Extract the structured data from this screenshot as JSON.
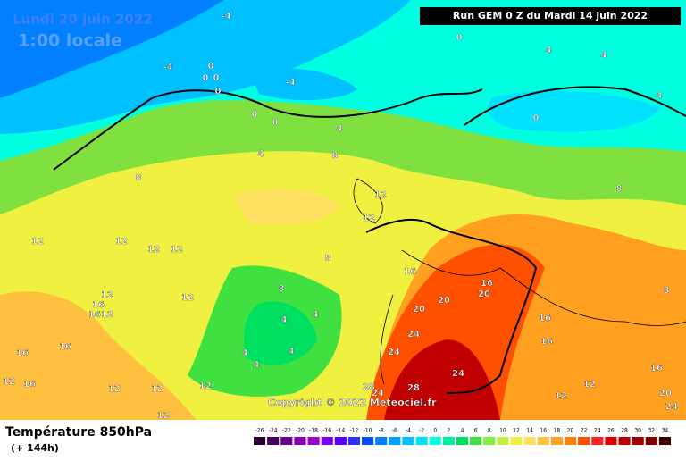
{
  "header": {
    "date": "Lundi 20 juin 2022",
    "time": "1:00 locale",
    "run": "Run GEM 0 Z du Mardi 14 juin 2022"
  },
  "copyright": "Copyright © 2022 Meteociel.fr",
  "footer": {
    "title": "Température 850hPa",
    "lead": "(+ 144h)"
  },
  "contour_labels": [
    -4,
    -4,
    -4,
    0,
    0,
    0,
    0,
    0,
    0,
    0,
    4,
    4,
    4,
    4,
    0,
    4,
    8,
    8,
    8,
    12,
    12,
    12,
    12,
    12,
    12,
    12,
    8,
    8,
    4,
    4,
    4,
    4,
    4,
    12,
    16,
    16,
    20,
    20,
    20,
    24,
    24,
    24,
    28,
    28,
    24,
    16,
    16,
    16,
    12,
    12,
    12,
    16,
    16,
    16,
    16,
    12,
    12,
    12,
    8,
    12,
    12,
    16,
    20,
    24
  ],
  "colorbar": {
    "labels": [
      -26,
      -24,
      -22,
      -20,
      -18,
      -16,
      -14,
      -12,
      -10,
      -8,
      -6,
      -4,
      -2,
      0,
      2,
      4,
      6,
      8,
      10,
      12,
      14,
      16,
      18,
      20,
      22,
      24,
      26,
      28,
      30,
      32,
      34
    ],
    "colors": [
      "#2a0030",
      "#4a0060",
      "#6a0090",
      "#8a00b0",
      "#a000d0",
      "#8000ff",
      "#5a00ff",
      "#3030ff",
      "#0050ff",
      "#0080ff",
      "#00a0ff",
      "#00c0ff",
      "#00e0ff",
      "#00ffe0",
      "#00f0a0",
      "#00e060",
      "#40e040",
      "#80f040",
      "#c0f040",
      "#f0f040",
      "#ffe060",
      "#ffc040",
      "#ffa020",
      "#ff8000",
      "#ff5000",
      "#ff2020",
      "#e00000",
      "#c00000",
      "#a00000",
      "#800000",
      "#400000"
    ]
  }
}
